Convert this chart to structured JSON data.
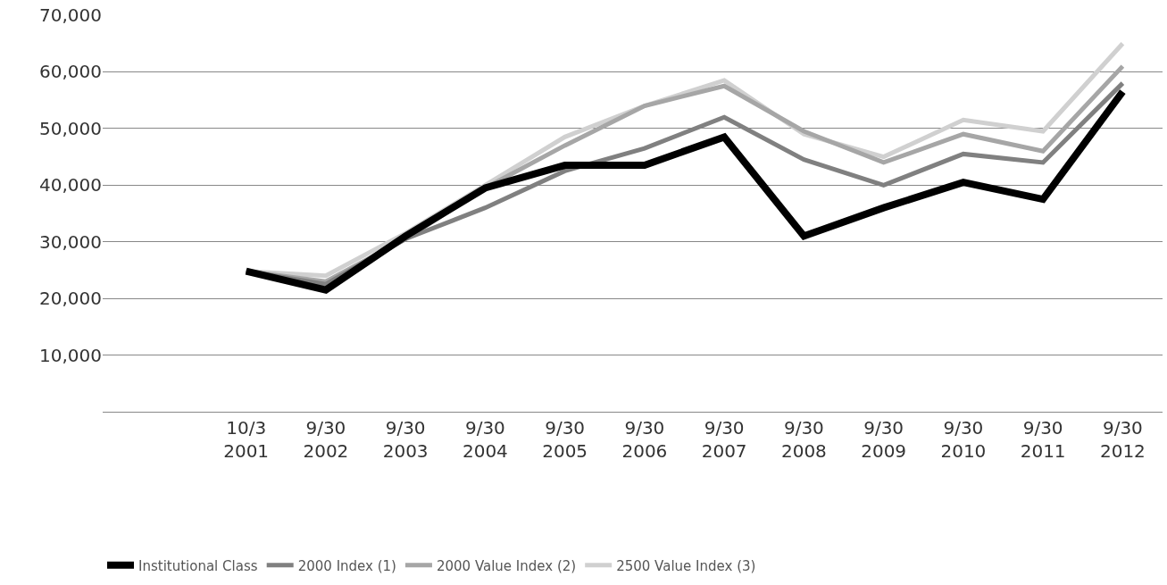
{
  "chart_data": {
    "type": "line",
    "categories": [
      "10/3\n2001",
      "9/30\n2002",
      "9/30\n2003",
      "9/30\n2004",
      "9/30\n2005",
      "9/30\n2006",
      "9/30\n2007",
      "9/30\n2008",
      "9/30\n2009",
      "9/30\n2010",
      "9/30\n2011",
      "9/30\n2012"
    ],
    "series": [
      {
        "name": "2500 Value Index (3)",
        "color": "#d0d0d0",
        "values": [
          24800,
          24000,
          31500,
          40000,
          48500,
          54000,
          58500,
          49000,
          45000,
          51500,
          49500,
          65000
        ]
      },
      {
        "name": "2000 Value Index (2)",
        "color": "#a6a6a6",
        "values": [
          24800,
          23000,
          30500,
          39500,
          47000,
          54000,
          57500,
          49500,
          44000,
          49000,
          46000,
          61000
        ]
      },
      {
        "name": "2000 Index (1)",
        "color": "#808080",
        "values": [
          24800,
          22500,
          30500,
          36000,
          42500,
          46500,
          52000,
          44500,
          40000,
          45500,
          44000,
          58000
        ]
      },
      {
        "name": "Institutional Class",
        "color": "#000000",
        "values": [
          24800,
          21500,
          31000,
          39500,
          43500,
          43500,
          48500,
          31000,
          36000,
          40500,
          37500,
          56500
        ]
      }
    ],
    "ylim": [
      0,
      70000
    ],
    "yticks": [
      {
        "value": 10000,
        "label": "10,000"
      },
      {
        "value": 20000,
        "label": "20,000"
      },
      {
        "value": 30000,
        "label": "30,000"
      },
      {
        "value": 40000,
        "label": "40,000"
      },
      {
        "value": 50000,
        "label": "50,000"
      },
      {
        "value": 60000,
        "label": "60,000"
      },
      {
        "value": 70000,
        "label": "70,000"
      }
    ],
    "grid": "y",
    "legend": "bottom",
    "marker": "none",
    "line_style": "solid"
  }
}
